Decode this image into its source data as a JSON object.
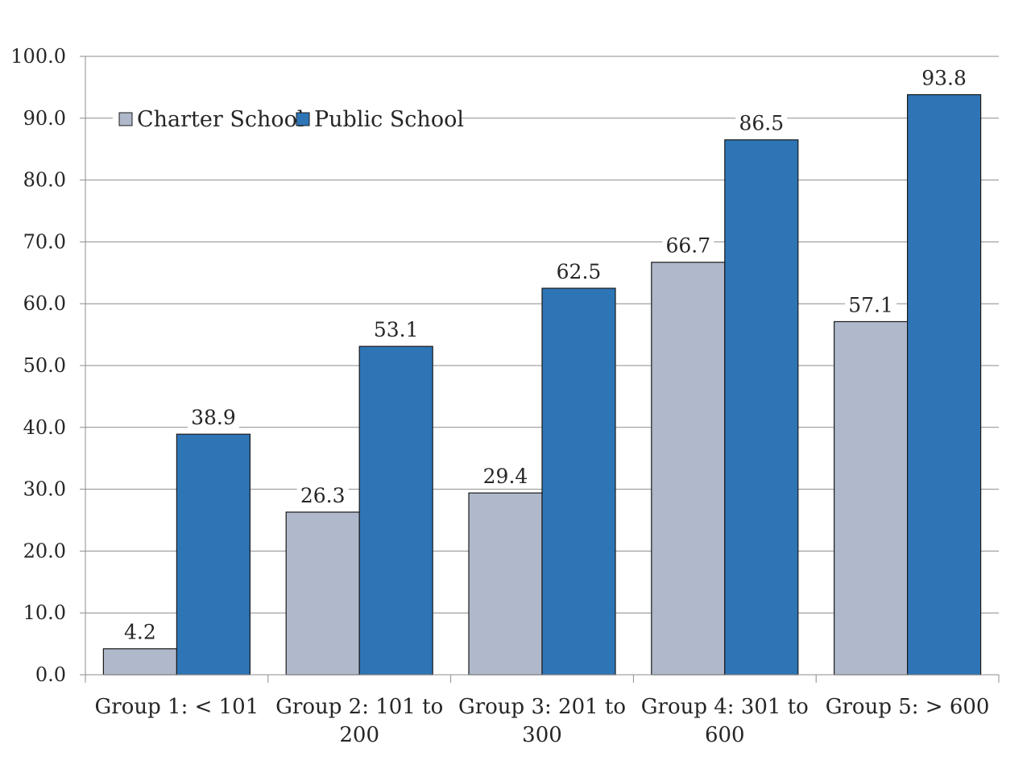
{
  "chart_data": {
    "type": "bar",
    "categories": [
      [
        "Group 1: < 101"
      ],
      [
        "Group 2: 101 to",
        "200"
      ],
      [
        "Group 3: 201 to",
        "300"
      ],
      [
        "Group 4: 301 to",
        "600"
      ],
      [
        "Group 5: > 600"
      ]
    ],
    "series": [
      {
        "name": "Charter School",
        "color": "#b0b9cb",
        "values": [
          4.2,
          26.3,
          29.4,
          66.7,
          57.1
        ],
        "labels": [
          "4.2",
          "26.3",
          "29.4",
          "66.7",
          "57.1"
        ]
      },
      {
        "name": "Public School",
        "color": "#2e75b6",
        "values": [
          38.9,
          53.1,
          62.5,
          86.5,
          93.8
        ],
        "labels": [
          "38.9",
          "53.1",
          "62.5",
          "86.5",
          "93.8"
        ]
      }
    ],
    "ylim": [
      0,
      100
    ],
    "yticks": [
      "0.0",
      "10.0",
      "20.0",
      "30.0",
      "40.0",
      "50.0",
      "60.0",
      "70.0",
      "80.0",
      "90.0",
      "100.0"
    ],
    "grid": true,
    "legend_position": "top-left",
    "title": "",
    "xlabel": "",
    "ylabel": ""
  }
}
